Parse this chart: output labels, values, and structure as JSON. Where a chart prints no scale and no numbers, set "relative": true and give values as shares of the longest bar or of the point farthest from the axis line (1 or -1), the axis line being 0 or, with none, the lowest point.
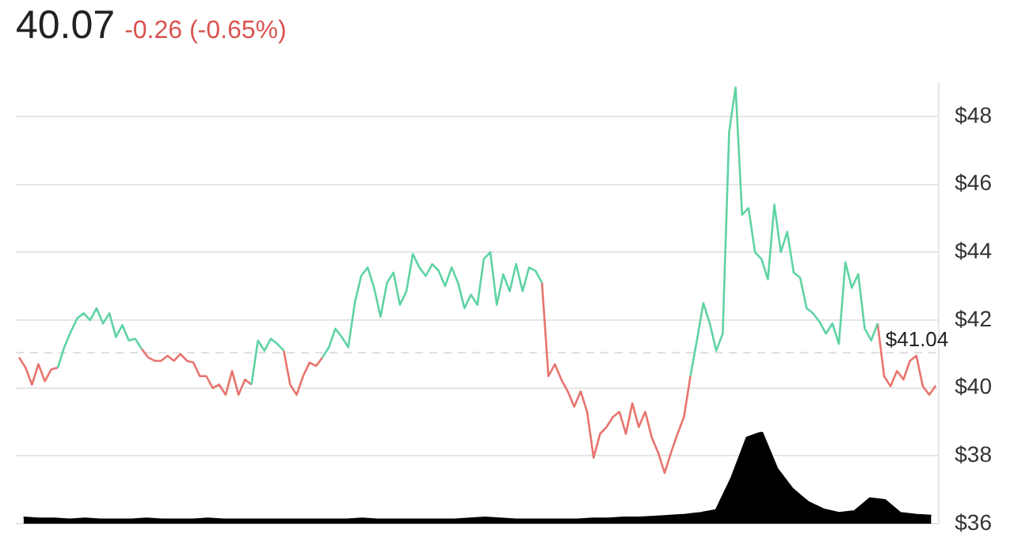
{
  "chart_data": [
    {
      "type": "line",
      "title": "40.07",
      "subtitle": "-0.26 (-0.65%)",
      "categories": [
        null,
        null,
        null,
        null,
        null,
        null,
        null,
        null,
        null,
        null,
        null,
        null,
        null,
        null,
        null,
        null,
        null,
        null,
        null,
        null,
        null,
        null,
        null,
        null,
        null,
        null,
        null,
        null,
        null,
        null,
        null,
        null,
        null,
        null,
        null,
        null,
        null,
        null,
        null,
        null,
        null,
        null,
        null,
        null,
        null,
        null,
        null,
        null,
        null,
        null,
        null,
        null,
        null,
        null,
        null,
        null,
        null,
        null,
        null,
        null,
        null,
        null,
        null,
        null,
        null,
        null,
        null,
        null,
        null,
        null,
        null,
        null,
        null,
        null,
        null,
        null,
        null,
        null,
        null,
        null,
        null,
        null,
        null,
        null,
        null,
        null,
        null,
        null,
        null,
        null,
        null,
        null,
        null,
        null,
        null,
        null,
        null,
        null,
        null,
        null,
        null,
        null,
        null,
        null,
        null,
        null,
        null,
        null,
        null,
        null,
        null,
        null,
        null,
        null,
        null,
        null,
        null,
        null,
        null,
        null,
        null,
        null,
        null,
        null,
        null,
        null,
        null,
        null,
        null,
        null,
        null,
        null,
        null,
        null,
        null,
        null,
        null,
        null,
        null,
        null,
        null,
        null,
        null
      ],
      "series": [
        {
          "color": "#5fd3a3",
          "values": [
            null,
            null,
            null,
            null,
            null,
            null,
            40.6,
            41.2,
            41.65,
            42.05,
            42.2,
            42.0,
            42.35,
            41.9,
            42.2,
            41.5,
            41.85,
            41.4,
            41.45,
            41.15,
            null,
            null,
            null,
            null,
            null,
            null,
            null,
            null,
            null,
            null,
            null,
            null,
            null,
            null,
            null,
            null,
            40.1,
            41.4,
            41.1,
            41.45,
            41.3,
            41.1,
            null,
            null,
            null,
            null,
            null,
            40.9,
            41.2,
            41.75,
            41.5,
            41.2,
            42.5,
            43.3,
            43.55,
            42.95,
            42.1,
            43.1,
            43.4,
            42.45,
            42.85,
            43.95,
            43.55,
            43.3,
            43.65,
            43.45,
            43.0,
            43.55,
            43.1,
            42.35,
            42.75,
            42.45,
            43.8,
            44.0,
            42.45,
            43.35,
            42.85,
            43.65,
            42.85,
            43.55,
            43.45,
            43.1,
            null,
            null,
            null,
            null,
            null,
            null,
            null,
            null,
            null,
            null,
            null,
            null,
            null,
            null,
            null,
            null,
            null,
            null,
            null,
            null,
            null,
            null,
            40.35,
            41.4,
            42.5,
            41.9,
            41.1,
            41.6,
            47.55,
            48.85,
            45.1,
            45.3,
            44.0,
            43.8,
            43.2,
            45.4,
            44.0,
            44.6,
            43.4,
            43.25,
            42.35,
            42.2,
            41.95,
            41.6,
            41.9,
            41.3,
            43.7,
            42.95,
            43.35,
            41.75,
            41.4,
            41.9,
            null,
            null,
            null,
            null,
            null,
            null,
            null,
            null,
            null
          ]
        },
        {
          "color": "#e8746e",
          "values": [
            40.9,
            40.6,
            40.1,
            40.7,
            40.2,
            40.55,
            40.6,
            null,
            null,
            null,
            null,
            null,
            null,
            null,
            null,
            null,
            null,
            null,
            null,
            41.15,
            40.9,
            40.8,
            40.8,
            40.95,
            40.8,
            41.0,
            40.8,
            40.75,
            40.35,
            40.35,
            40.0,
            40.1,
            39.8,
            40.5,
            39.8,
            40.25,
            40.1,
            null,
            null,
            null,
            null,
            41.1,
            40.1,
            39.8,
            40.35,
            40.75,
            40.65,
            40.9,
            null,
            null,
            null,
            null,
            null,
            null,
            null,
            null,
            null,
            null,
            null,
            null,
            null,
            null,
            null,
            null,
            null,
            null,
            null,
            null,
            null,
            null,
            null,
            null,
            null,
            null,
            null,
            null,
            null,
            null,
            null,
            null,
            null,
            43.1,
            40.35,
            40.7,
            40.25,
            39.9,
            39.45,
            39.9,
            39.3,
            37.95,
            38.65,
            38.85,
            39.15,
            39.3,
            38.65,
            39.55,
            38.85,
            39.3,
            38.55,
            38.1,
            37.5,
            38.1,
            38.65,
            39.15,
            40.35,
            null,
            null,
            null,
            null,
            null,
            null,
            null,
            null,
            null,
            null,
            null,
            null,
            null,
            null,
            null,
            null,
            null,
            null,
            null,
            null,
            null,
            null,
            null,
            null,
            null,
            null,
            null,
            null,
            41.9,
            40.35,
            40.05,
            40.5,
            40.25,
            40.8,
            40.95,
            40.05,
            39.8,
            40.07
          ]
        }
      ],
      "ylim": [
        36,
        49
      ],
      "yticks": [
        {
          "value": 36,
          "label": "$36"
        },
        {
          "value": 38,
          "label": "$38"
        },
        {
          "value": 40,
          "label": "$40"
        },
        {
          "value": 42,
          "label": "$42"
        },
        {
          "value": 44,
          "label": "$44"
        },
        {
          "value": 46,
          "label": "$46"
        },
        {
          "value": 48,
          "label": "$48"
        }
      ],
      "ref_lines": [
        {
          "axis": "y",
          "value": 41.04,
          "label": "$41.04",
          "color": "#dddddd",
          "line_style": "dashed"
        }
      ],
      "grid": "y",
      "legend": false,
      "marker": "none",
      "tick_labels": "y"
    },
    {
      "type": "area",
      "relative": true,
      "categories": [
        null,
        null,
        null,
        null,
        null,
        null,
        null,
        null,
        null,
        null,
        null,
        null,
        null,
        null,
        null,
        null,
        null,
        null,
        null,
        null,
        null,
        null,
        null,
        null,
        null,
        null,
        null,
        null,
        null,
        null,
        null,
        null,
        null,
        null,
        null,
        null,
        null,
        null,
        null,
        null,
        null,
        null,
        null,
        null,
        null,
        null,
        null,
        null,
        null,
        null,
        null,
        null,
        null,
        null,
        null,
        null,
        null,
        null,
        null,
        null
      ],
      "series": [
        {
          "color": "#000000",
          "values": [
            0.07,
            0.06,
            0.06,
            0.05,
            0.06,
            0.05,
            0.05,
            0.05,
            0.06,
            0.05,
            0.05,
            0.05,
            0.06,
            0.05,
            0.05,
            0.05,
            0.05,
            0.05,
            0.05,
            0.05,
            0.05,
            0.05,
            0.06,
            0.05,
            0.05,
            0.05,
            0.05,
            0.05,
            0.05,
            0.06,
            0.07,
            0.06,
            0.05,
            0.05,
            0.05,
            0.05,
            0.05,
            0.06,
            0.06,
            0.07,
            0.07,
            0.08,
            0.09,
            0.1,
            0.12,
            0.15,
            0.5,
            0.94,
            1,
            0.6,
            0.38,
            0.24,
            0.16,
            0.12,
            0.14,
            0.28,
            0.26,
            0.12,
            0.1,
            0.09
          ]
        }
      ],
      "legend": false,
      "marker": "none",
      "tick_labels": false
    }
  ]
}
